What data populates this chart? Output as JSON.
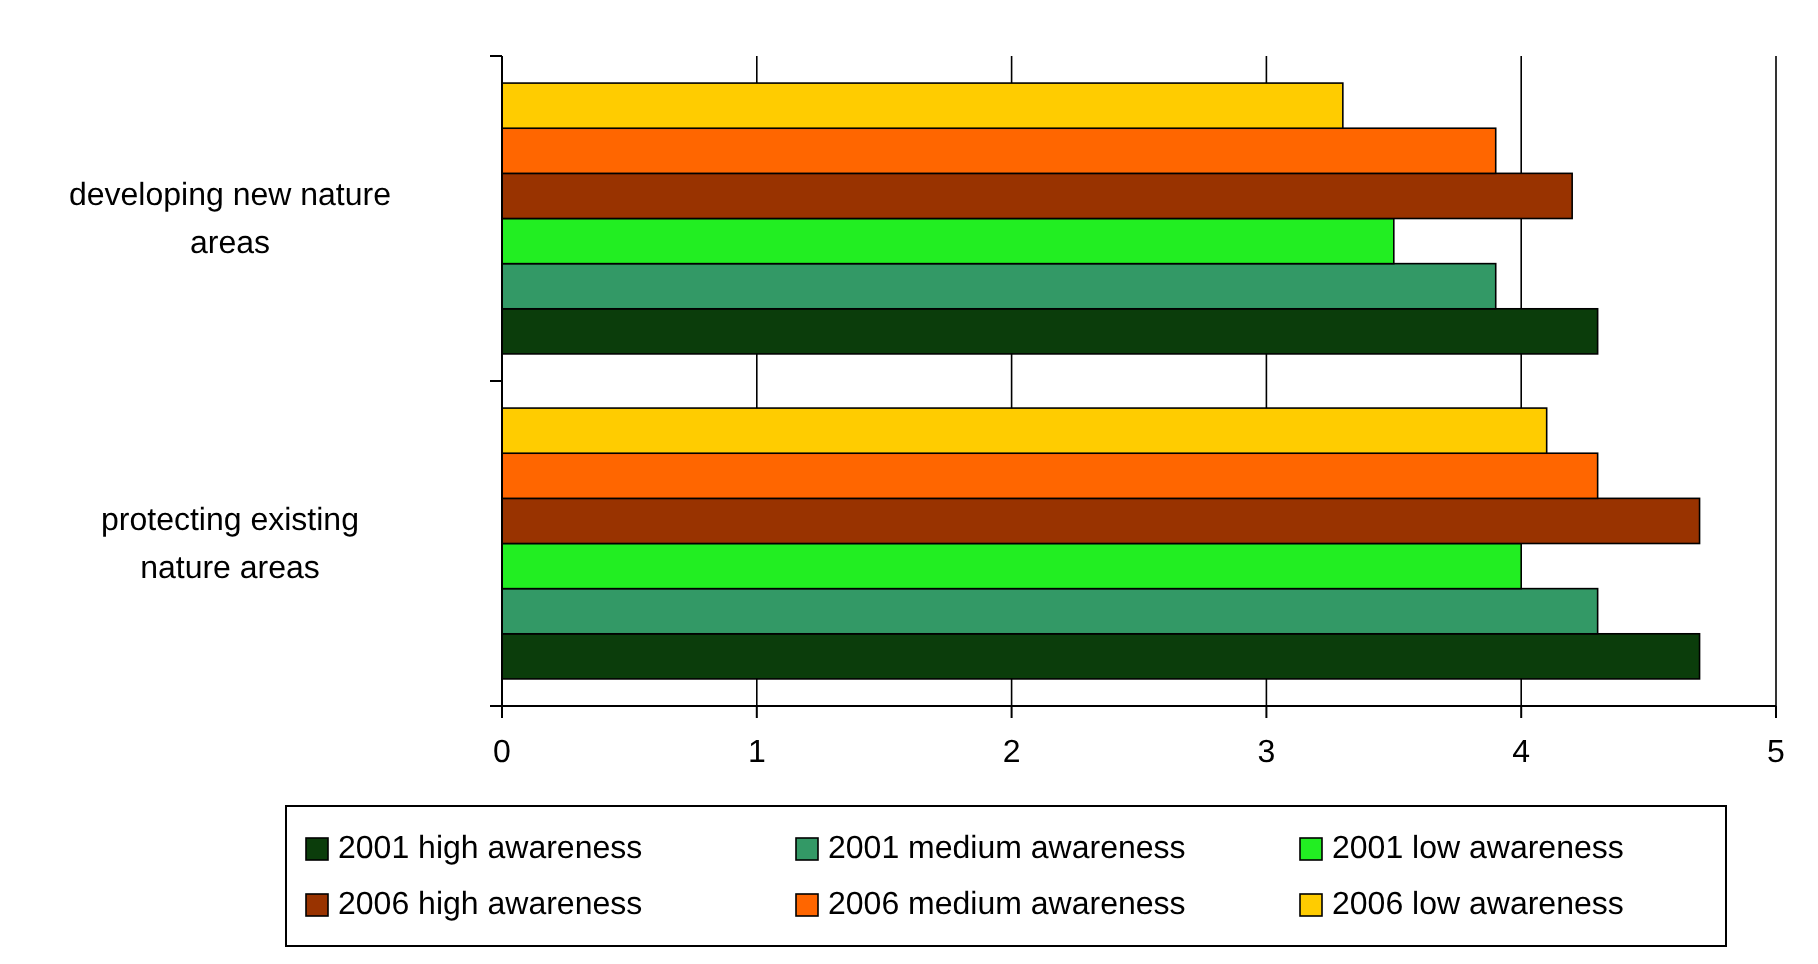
{
  "chart_data": {
    "type": "bar",
    "orientation": "horizontal",
    "categories": [
      "developing new nature areas",
      "protecting existing nature areas"
    ],
    "series": [
      {
        "name": "2001 high awareness",
        "color": "#0b3d0b",
        "values": [
          4.3,
          4.7
        ]
      },
      {
        "name": "2001 medium awareness",
        "color": "#339966",
        "values": [
          3.9,
          4.3
        ]
      },
      {
        "name": "2001 low awareness",
        "color": "#22ee22",
        "values": [
          3.5,
          4.0
        ]
      },
      {
        "name": "2006 high awareness",
        "color": "#993300",
        "values": [
          4.2,
          4.7
        ]
      },
      {
        "name": "2006 medium awareness",
        "color": "#ff6600",
        "values": [
          3.9,
          4.3
        ]
      },
      {
        "name": "2006 low awareness",
        "color": "#ffcc00",
        "values": [
          3.3,
          4.1
        ]
      }
    ],
    "xlim": [
      0,
      5
    ],
    "xticks": [
      0,
      1,
      2,
      3,
      4,
      5
    ],
    "grid": "x",
    "legend": "bottom"
  }
}
